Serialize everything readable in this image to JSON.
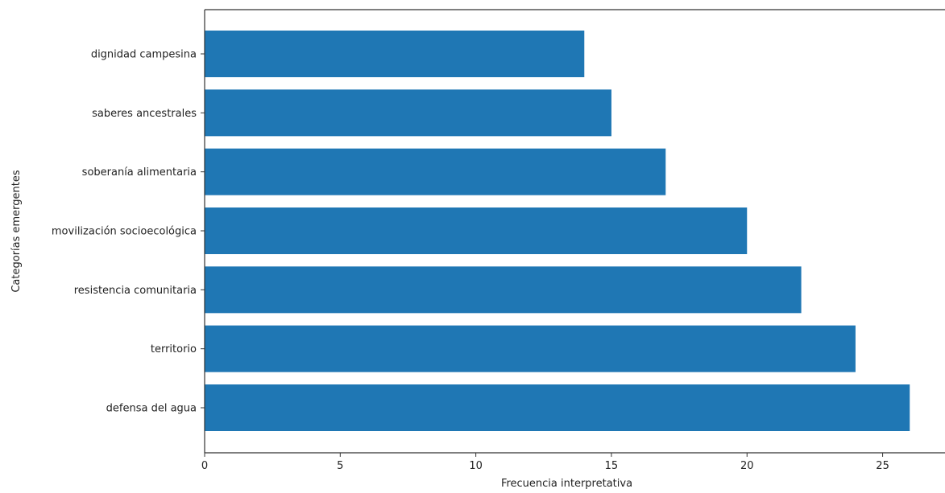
{
  "chart_data": {
    "type": "bar",
    "orientation": "horizontal",
    "title": "",
    "categories": [
      "dignidad campesina",
      "saberes ancestrales",
      "soberanía alimentaria",
      "movilización socioecológica",
      "resistencia comunitaria",
      "territorio",
      "defensa del agua"
    ],
    "values": [
      14,
      15,
      17,
      20,
      22,
      24,
      26
    ],
    "xlabel": "Frecuencia interpretativa",
    "ylabel": "Categorías emergentes",
    "xlim": [
      0,
      27.3
    ],
    "xticks": [
      0,
      5,
      10,
      15,
      20,
      25
    ],
    "grid": false,
    "bar_color": "#1f77b4"
  }
}
